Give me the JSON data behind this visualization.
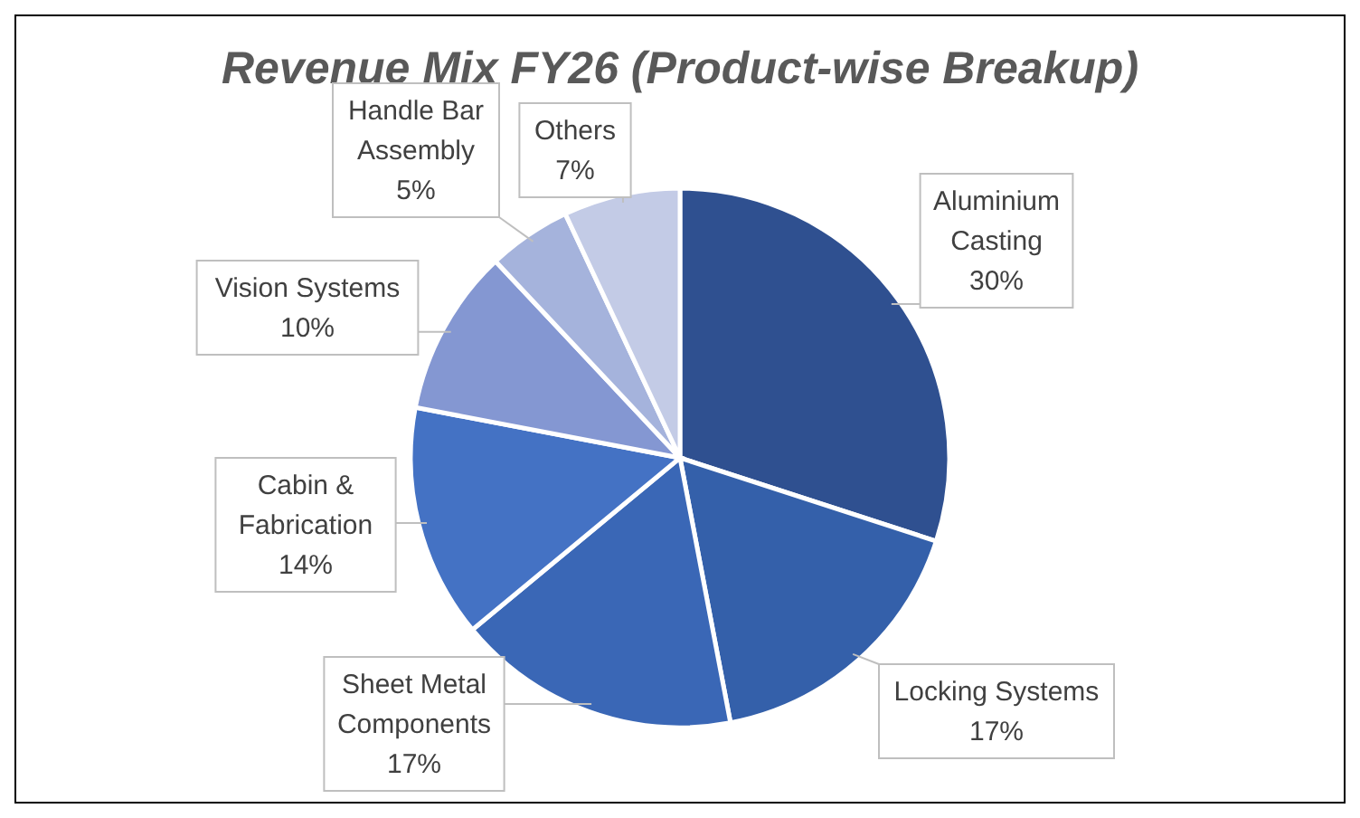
{
  "chart_data": {
    "type": "pie",
    "title": "Revenue Mix FY26 (Product-wise Breakup)",
    "categories": [
      "Aluminium Casting",
      "Locking Systems",
      "Sheet Metal Components",
      "Cabin & Fabrication",
      "Vision Systems",
      "Handle Bar Assembly",
      "Others"
    ],
    "values": [
      30,
      17,
      17,
      14,
      10,
      5,
      7
    ],
    "colors": [
      "#2f5090",
      "#3460aa",
      "#3a67b6",
      "#4472c4",
      "#8497d2",
      "#a5b3dc",
      "#c3cbe6"
    ],
    "value_labels": [
      "30%",
      "17%",
      "17%",
      "14%",
      "10%",
      "5%",
      "7%"
    ]
  }
}
